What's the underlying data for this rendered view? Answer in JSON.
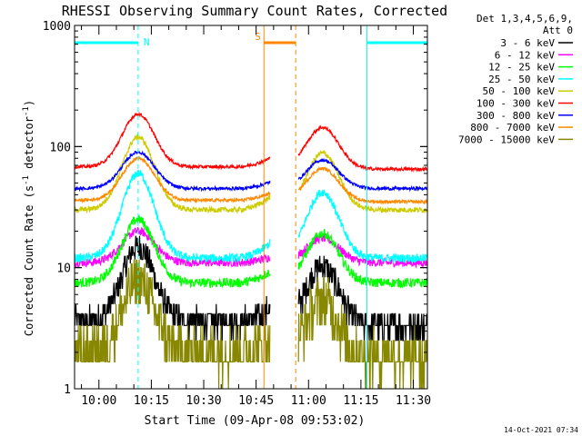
{
  "chart_data": {
    "type": "line",
    "title": "RHESSI Observing Summary Count Rates, Corrected",
    "xlabel": "Start Time (09-Apr-08 09:53:02)",
    "ylabel_main": "Corrected Count Rate (s",
    "ylabel_sup1": "-1",
    "ylabel_mid": " detector",
    "ylabel_sup2": "-1",
    "ylabel_end": ")",
    "y_scale": "log",
    "ylim": [
      1,
      1000
    ],
    "xlim_minutes": [
      0,
      101
    ],
    "x_tick_labels": [
      {
        "label": "10:00",
        "min": 6.97
      },
      {
        "label": "10:15",
        "min": 21.97
      },
      {
        "label": "10:30",
        "min": 36.97
      },
      {
        "label": "10:45",
        "min": 51.97
      },
      {
        "label": "11:00",
        "min": 66.97
      },
      {
        "label": "11:15",
        "min": 81.97
      },
      {
        "label": "11:30",
        "min": 96.97
      }
    ],
    "y_tick_labels": [
      {
        "label": "1",
        "value": 1
      },
      {
        "label": "10",
        "value": 10
      },
      {
        "label": "100",
        "value": 100
      },
      {
        "label": "1000",
        "value": 1000
      }
    ],
    "legend_position": "right",
    "legend_header": [
      "Det 1,3,4,5,6,9,",
      "Att 0"
    ],
    "gaps_minutes": [
      [
        56,
        64
      ]
    ],
    "series": [
      {
        "name": "3 - 6 keV",
        "color": "#000000",
        "peak": 15,
        "base": 3.6,
        "end": 3.3,
        "noise": 0.25
      },
      {
        "name": "6 - 12 keV",
        "color": "#ff00ff",
        "peak": 20,
        "base": 11,
        "end": 11,
        "noise": 0.08
      },
      {
        "name": "12 - 25 keV",
        "color": "#00ff00",
        "peak": 25,
        "base": 7.5,
        "end": 7.5,
        "noise": 0.09
      },
      {
        "name": "25 - 50 keV",
        "color": "#00ffff",
        "peak": 60,
        "base": 12,
        "end": 12,
        "noise": 0.08
      },
      {
        "name": "50 - 100 keV",
        "color": "#cccc00",
        "peak": 120,
        "base": 30,
        "end": 30,
        "noise": 0.05
      },
      {
        "name": "100 - 300 keV",
        "color": "#ff0000",
        "peak": 185,
        "base": 68,
        "end": 65,
        "noise": 0.03
      },
      {
        "name": "300 - 800 keV",
        "color": "#0000ff",
        "peak": 90,
        "base": 45,
        "end": 45,
        "noise": 0.03
      },
      {
        "name": "800 - 7000 keV",
        "color": "#ff8800",
        "peak": 80,
        "base": 36,
        "end": 35,
        "noise": 0.03
      },
      {
        "name": "7000 - 15000 keV",
        "color": "#888800",
        "peak": 7.8,
        "base": 2.0,
        "end": 1.8,
        "noise": 0.5
      }
    ],
    "annotations": [
      {
        "label": "N",
        "color": "#00ffff",
        "bar_minutes": [
          0,
          18.2
        ],
        "mark_minute": 18.2
      },
      {
        "label": "S",
        "color": "#ff8800",
        "bar_minutes": [
          54.2,
          63.3
        ],
        "mark_minute": 54.2,
        "mark2_minute": 63.3
      },
      {
        "label": "",
        "color": "#00ffff",
        "bar_minutes": [
          83.7,
          101
        ],
        "mark_minute": 83.7,
        "mark2_minute": 101
      }
    ],
    "footer_date": "14-Oct-2021 07:34"
  }
}
